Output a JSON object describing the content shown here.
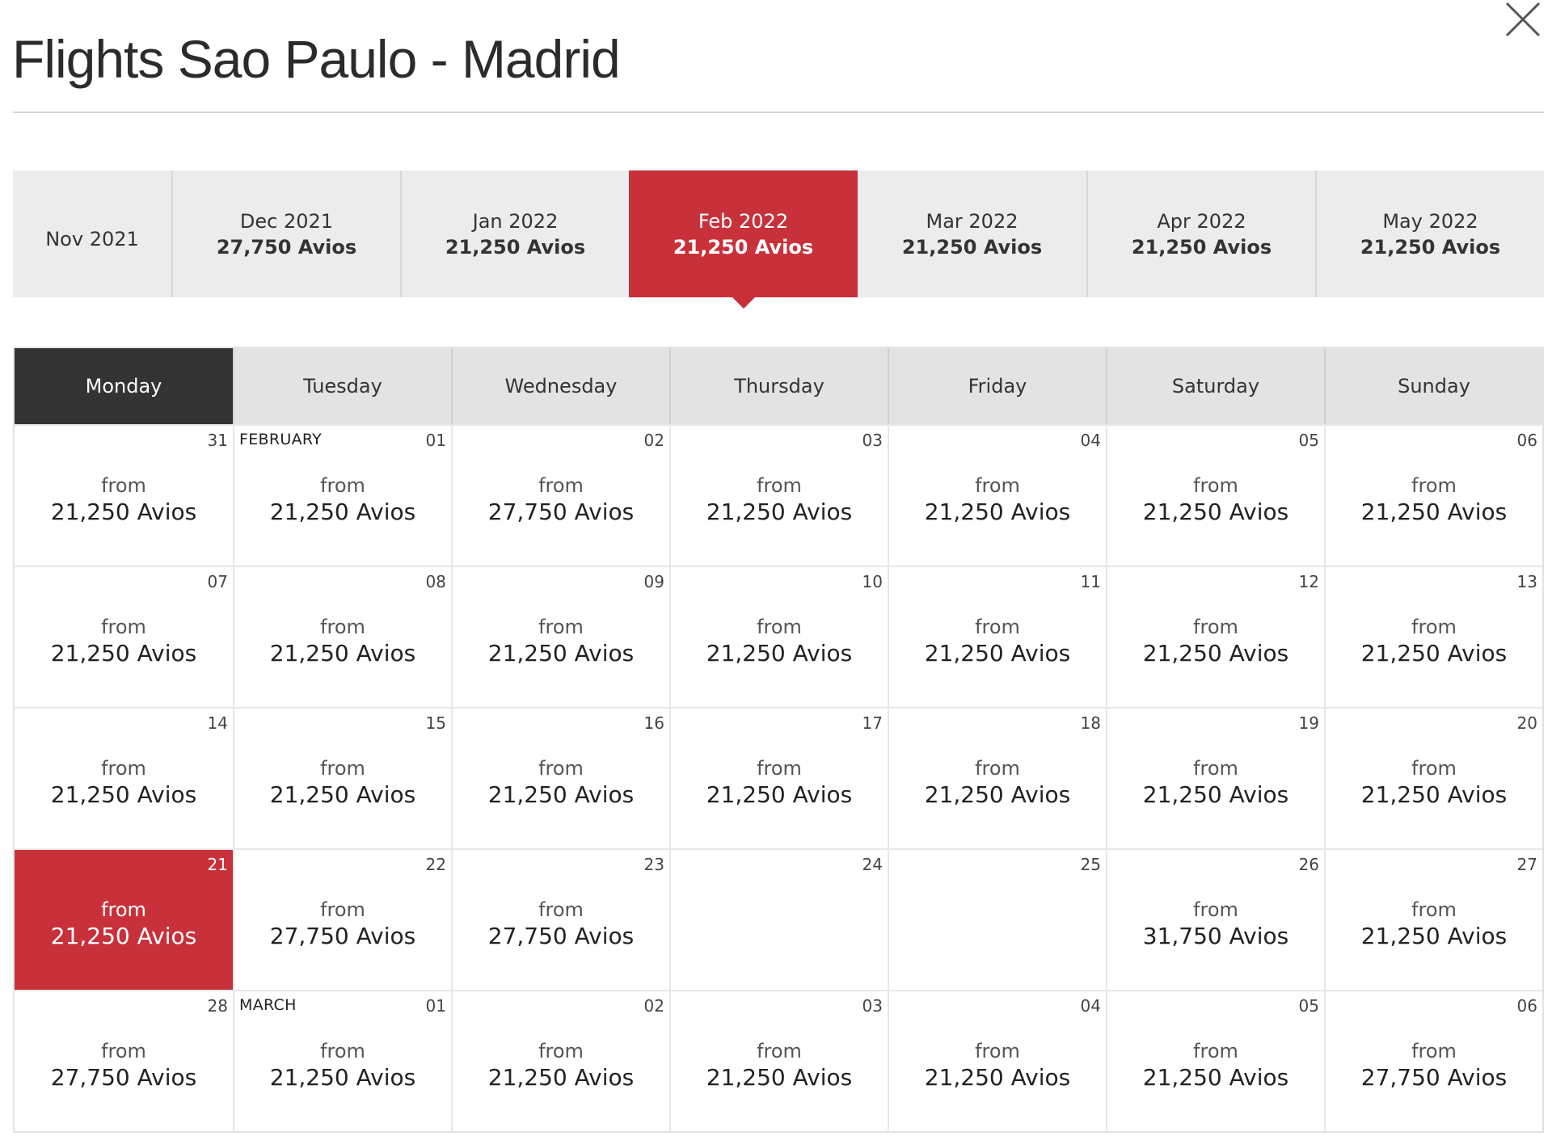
{
  "title": "Flights Sao Paulo - Madrid",
  "colors": {
    "accent": "#c8313a",
    "active_day_header": "#333333"
  },
  "months": [
    {
      "label": "Nov 2021",
      "price": ""
    },
    {
      "label": "Dec 2021",
      "price": "27,750 Avios"
    },
    {
      "label": "Jan 2022",
      "price": "21,250 Avios"
    },
    {
      "label": "Feb 2022",
      "price": "21,250 Avios",
      "active": true
    },
    {
      "label": "Mar 2022",
      "price": "21,250 Avios"
    },
    {
      "label": "Apr 2022",
      "price": "21,250 Avios"
    },
    {
      "label": "May 2022",
      "price": "21,250 Avios"
    }
  ],
  "weekdays": [
    "Monday",
    "Tuesday",
    "Wednesday",
    "Thursday",
    "Friday",
    "Saturday",
    "Sunday"
  ],
  "active_weekday": "Monday",
  "from_label": "from",
  "weeks": [
    [
      {
        "day": "31",
        "price": "21,250 Avios"
      },
      {
        "day": "01",
        "month_name": "FEBRUARY",
        "price": "21,250 Avios"
      },
      {
        "day": "02",
        "price": "27,750 Avios"
      },
      {
        "day": "03",
        "price": "21,250 Avios"
      },
      {
        "day": "04",
        "price": "21,250 Avios"
      },
      {
        "day": "05",
        "price": "21,250 Avios"
      },
      {
        "day": "06",
        "price": "21,250 Avios"
      }
    ],
    [
      {
        "day": "07",
        "price": "21,250 Avios"
      },
      {
        "day": "08",
        "price": "21,250 Avios"
      },
      {
        "day": "09",
        "price": "21,250 Avios"
      },
      {
        "day": "10",
        "price": "21,250 Avios"
      },
      {
        "day": "11",
        "price": "21,250 Avios"
      },
      {
        "day": "12",
        "price": "21,250 Avios"
      },
      {
        "day": "13",
        "price": "21,250 Avios"
      }
    ],
    [
      {
        "day": "14",
        "price": "21,250 Avios"
      },
      {
        "day": "15",
        "price": "21,250 Avios"
      },
      {
        "day": "16",
        "price": "21,250 Avios"
      },
      {
        "day": "17",
        "price": "21,250 Avios"
      },
      {
        "day": "18",
        "price": "21,250 Avios"
      },
      {
        "day": "19",
        "price": "21,250 Avios"
      },
      {
        "day": "20",
        "price": "21,250 Avios"
      }
    ],
    [
      {
        "day": "21",
        "price": "21,250 Avios",
        "selected": true
      },
      {
        "day": "22",
        "price": "27,750 Avios"
      },
      {
        "day": "23",
        "price": "27,750 Avios"
      },
      {
        "day": "24",
        "price": ""
      },
      {
        "day": "25",
        "price": ""
      },
      {
        "day": "26",
        "price": "31,750 Avios"
      },
      {
        "day": "27",
        "price": "21,250 Avios"
      }
    ],
    [
      {
        "day": "28",
        "price": "27,750 Avios"
      },
      {
        "day": "01",
        "month_name": "MARCH",
        "price": "21,250 Avios"
      },
      {
        "day": "02",
        "price": "21,250 Avios"
      },
      {
        "day": "03",
        "price": "21,250 Avios"
      },
      {
        "day": "04",
        "price": "21,250 Avios"
      },
      {
        "day": "05",
        "price": "21,250 Avios"
      },
      {
        "day": "06",
        "price": "27,750 Avios"
      }
    ]
  ]
}
